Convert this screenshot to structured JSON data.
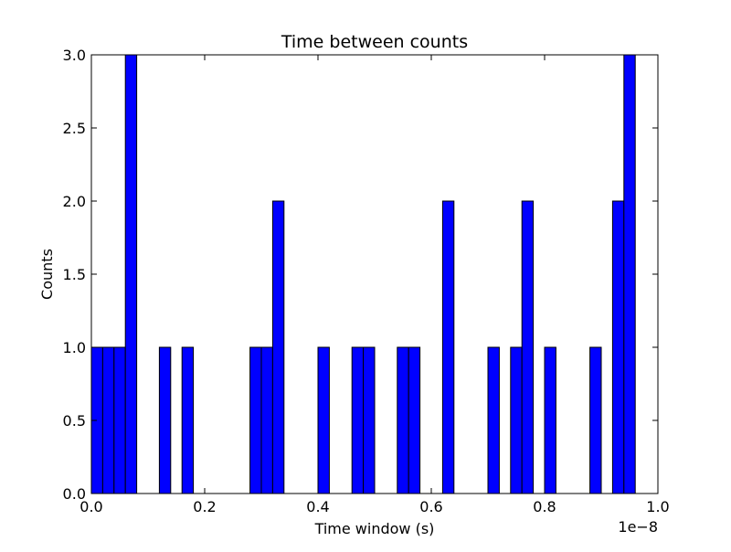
{
  "chart_data": {
    "type": "bar",
    "title": "Time between counts",
    "xlabel": "Time window (s)",
    "ylabel": "Counts",
    "x_offset_label": "1e−8",
    "xlim": [
      0.0,
      1.0
    ],
    "ylim": [
      0.0,
      3.0
    ],
    "bin_width": 0.02,
    "bar_color": "#0000ff",
    "edge_color": "#000000",
    "grid": false,
    "x_ticks": [
      0.0,
      0.2,
      0.4,
      0.6,
      0.8,
      1.0
    ],
    "x_tick_labels": [
      "0.0",
      "0.2",
      "0.4",
      "0.6",
      "0.8",
      "1.0"
    ],
    "y_ticks": [
      0.0,
      0.5,
      1.0,
      1.5,
      2.0,
      2.5,
      3.0
    ],
    "y_tick_labels": [
      "0.0",
      "0.5",
      "1.0",
      "1.5",
      "2.0",
      "2.5",
      "3.0"
    ],
    "bins": [
      {
        "start": 0.0,
        "count": 1
      },
      {
        "start": 0.02,
        "count": 1
      },
      {
        "start": 0.04,
        "count": 1
      },
      {
        "start": 0.06,
        "count": 3
      },
      {
        "start": 0.12,
        "count": 1
      },
      {
        "start": 0.16,
        "count": 1
      },
      {
        "start": 0.28,
        "count": 1
      },
      {
        "start": 0.3,
        "count": 1
      },
      {
        "start": 0.32,
        "count": 2
      },
      {
        "start": 0.4,
        "count": 1
      },
      {
        "start": 0.46,
        "count": 1
      },
      {
        "start": 0.48,
        "count": 1
      },
      {
        "start": 0.54,
        "count": 1
      },
      {
        "start": 0.56,
        "count": 1
      },
      {
        "start": 0.62,
        "count": 2
      },
      {
        "start": 0.7,
        "count": 1
      },
      {
        "start": 0.74,
        "count": 1
      },
      {
        "start": 0.76,
        "count": 2
      },
      {
        "start": 0.8,
        "count": 1
      },
      {
        "start": 0.88,
        "count": 1
      },
      {
        "start": 0.92,
        "count": 2
      },
      {
        "start": 0.94,
        "count": 3
      }
    ]
  }
}
